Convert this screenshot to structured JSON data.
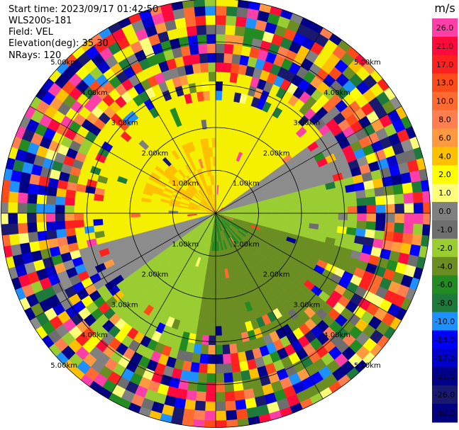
{
  "header": {
    "start_time": "Start time: 2023/09/17 01:42:50",
    "site": "WLS200s-181",
    "field": "Field: VEL",
    "elevation": "Elevation(deg): 35.30",
    "nrays": "NRays: 120"
  },
  "chart_data": {
    "type": "polar_ppi",
    "field": "VEL",
    "nrays": 120,
    "elevation_deg": 35.3,
    "range_rings_km": [
      1,
      2,
      3,
      4,
      5
    ],
    "ring_labels": [
      "1.00km",
      "2.00km",
      "3.00km",
      "4.00km",
      "5.00km"
    ],
    "colorbar": {
      "unit": "m/s",
      "ticks": [
        "26.0",
        "21.0",
        "17.0",
        "13.0",
        "10.0",
        "8.0",
        "6.0",
        "4.0",
        "2.0",
        "1.0",
        "0.0",
        "-1.0",
        "-2.0",
        "-4.0",
        "-6.0",
        "-8.0",
        "-10.0",
        "-13.0",
        "-17.0",
        "-21.0",
        "-26.0",
        "-30.0"
      ],
      "colors": [
        "#ff3fa8",
        "#ff0a3c",
        "#ff2020",
        "#ff4a1a",
        "#ff6a30",
        "#ff7f50",
        "#ff9a40",
        "#ffc000",
        "#ffff00",
        "#ffff7a",
        "#808080",
        "#6e6e6e",
        "#9acd32",
        "#6b8e23",
        "#228b22",
        "#1e7a3a",
        "#1e90ff",
        "#0000ff",
        "#0000cd",
        "#00008b",
        "#191970",
        "#000080"
      ]
    }
  }
}
